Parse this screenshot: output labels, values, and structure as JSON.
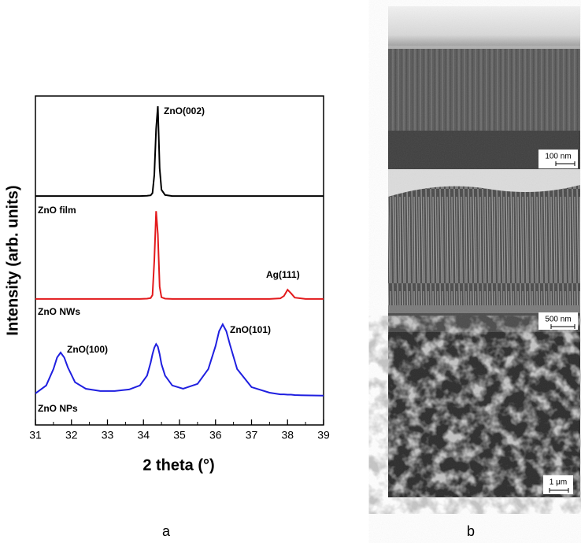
{
  "chart_data": {
    "type": "line",
    "x_label": "2 theta (°)",
    "y_label": "Intensity (arb. units)",
    "x": [
      31,
      31.3,
      31.5,
      31.6,
      31.7,
      31.8,
      31.9,
      32.1,
      32.4,
      32.8,
      33.2,
      33.6,
      33.9,
      34.1,
      34.2,
      34.25,
      34.3,
      34.35,
      34.4,
      34.45,
      34.5,
      34.6,
      34.8,
      35.1,
      35.5,
      35.8,
      36.0,
      36.1,
      36.2,
      36.3,
      36.4,
      36.6,
      37.0,
      37.5,
      37.8,
      37.9,
      38.0,
      38.1,
      38.2,
      38.5,
      39
    ],
    "series": [
      {
        "name": "ZnO film",
        "color": "#000000",
        "values": [
          69.6,
          69.6,
          69.6,
          69.6,
          69.6,
          69.6,
          69.6,
          69.6,
          69.6,
          69.6,
          69.6,
          69.6,
          69.6,
          69.7,
          69.8,
          70.5,
          76,
          90,
          96.9,
          78,
          71.5,
          69.9,
          69.6,
          69.6,
          69.6,
          69.6,
          69.6,
          69.6,
          69.6,
          69.6,
          69.6,
          69.6,
          69.6,
          69.6,
          69.6,
          69.6,
          69.6,
          69.6,
          69.6,
          69.6,
          69.6
        ]
      },
      {
        "name": "ZnO NWs",
        "color": "#e31a1c",
        "values": [
          38.3,
          38.3,
          38.3,
          38.3,
          38.3,
          38.3,
          38.3,
          38.3,
          38.3,
          38.3,
          38.3,
          38.3,
          38.3,
          38.4,
          38.6,
          39.5,
          50,
          65,
          58,
          42,
          38.8,
          38.4,
          38.3,
          38.3,
          38.3,
          38.3,
          38.3,
          38.3,
          38.3,
          38.3,
          38.3,
          38.3,
          38.3,
          38.3,
          38.5,
          39.2,
          41.1,
          40,
          38.7,
          38.3,
          38.3
        ]
      },
      {
        "name": "ZnO NPs",
        "color": "#1f1fe0",
        "values": [
          9.6,
          12,
          17,
          20.5,
          22,
          20.5,
          17.5,
          13,
          11,
          10.3,
          10.3,
          10.8,
          12,
          15,
          19,
          21.5,
          23.5,
          24.6,
          23.8,
          21.5,
          18.5,
          15,
          12,
          11,
          12.5,
          17,
          24,
          28.5,
          30.6,
          28.5,
          24.5,
          17,
          11.5,
          9.8,
          9.3,
          9.3,
          9.2,
          9.2,
          9.1,
          9.0,
          8.9
        ]
      }
    ],
    "annotations": [
      "ZnO(002)",
      "Ag(111)",
      "ZnO(101)",
      "ZnO(100)"
    ],
    "xlim": [
      31,
      39
    ],
    "xticks": [
      31,
      32,
      33,
      34,
      35,
      36,
      37,
      38,
      39
    ],
    "ylim": [
      0,
      100
    ]
  },
  "panel_labels": [
    "a",
    "b"
  ],
  "images": {
    "scale_bars": [
      "100 nm",
      "500 nm",
      "1 μm"
    ]
  }
}
